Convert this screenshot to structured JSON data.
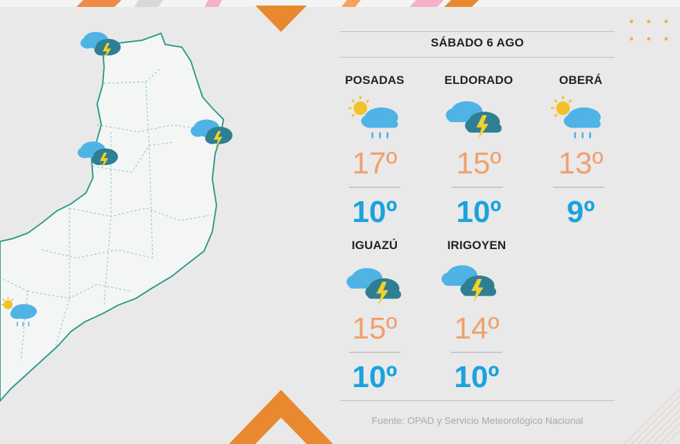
{
  "forecast": {
    "date": "SÁBADO 6 AGO",
    "cities": [
      {
        "name": "POSADAS",
        "condition": "sun-cloud-rain-icon",
        "max": "17º",
        "min": "10º"
      },
      {
        "name": "ELDORADO",
        "condition": "thunderstorm-icon",
        "max": "15º",
        "min": "10º"
      },
      {
        "name": "OBERÁ",
        "condition": "sun-cloud-rain-icon",
        "max": "13º",
        "min": "9º"
      },
      {
        "name": "IGUAZÚ",
        "condition": "thunderstorm-icon",
        "max": "15º",
        "min": "10º"
      },
      {
        "name": "IRIGOYEN",
        "condition": "thunderstorm-icon",
        "max": "14º",
        "min": "10º"
      }
    ],
    "source": "Fuente: OPAD y Servicio Meteorológico Nacional"
  },
  "colors": {
    "max_temp": "#f0a06e",
    "min_temp": "#1ba3dd",
    "accent_orange": "#e8892f",
    "map_fill": "#f4f6f6",
    "map_border": "#2e9a8a"
  }
}
